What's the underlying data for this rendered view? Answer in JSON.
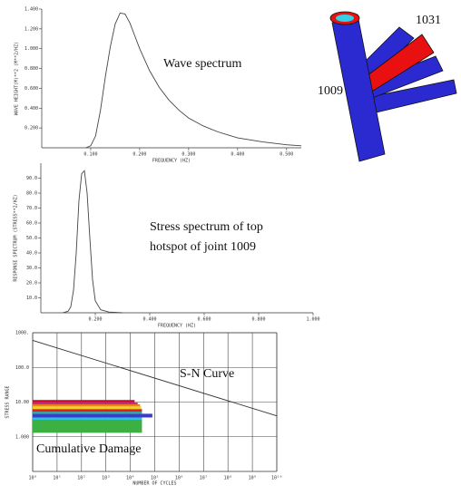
{
  "chart_data": [
    {
      "type": "line",
      "annotation": "Wave spectrum",
      "y_label": "WAVE HEIGHT(M)**2 (M**2/HZ)",
      "x_label": "FREQUENCY (HZ)",
      "color": "#444444",
      "x": [
        0.09,
        0.1,
        0.11,
        0.12,
        0.13,
        0.14,
        0.15,
        0.16,
        0.17,
        0.18,
        0.19,
        0.2,
        0.22,
        0.24,
        0.26,
        0.28,
        0.3,
        0.33,
        0.36,
        0.4,
        0.45,
        0.5,
        0.53
      ],
      "values": [
        0.0,
        0.02,
        0.12,
        0.38,
        0.72,
        1.02,
        1.25,
        1.36,
        1.35,
        1.26,
        1.13,
        1.0,
        0.78,
        0.61,
        0.48,
        0.38,
        0.3,
        0.22,
        0.16,
        0.1,
        0.06,
        0.03,
        0.02
      ],
      "xlim": [
        0,
        0.53
      ],
      "ylim": [
        0,
        1.4
      ],
      "xticks": [
        {
          "value": 0.1,
          "label": "0.100"
        },
        {
          "value": 0.2,
          "label": "0.200"
        },
        {
          "value": 0.3,
          "label": "0.300"
        },
        {
          "value": 0.4,
          "label": "0.400"
        },
        {
          "value": 0.5,
          "label": "0.500"
        }
      ],
      "yticks": [
        {
          "value": 0.2,
          "label": "0.200"
        },
        {
          "value": 0.4,
          "label": "0.400"
        },
        {
          "value": 0.6,
          "label": "0.600"
        },
        {
          "value": 0.8,
          "label": "0.800"
        },
        {
          "value": 1.0,
          "label": "1.000"
        },
        {
          "value": 1.2,
          "label": "1.200"
        },
        {
          "value": 1.4,
          "label": "1.400"
        }
      ]
    },
    {
      "type": "line",
      "annotation": [
        "Stress  spectrum  of  top",
        "hotspot of joint 1009"
      ],
      "y_label": "RESPONSE SPECTRUM (STRESS**2/HZ)",
      "x_label": "FREQUENCY (HZ)",
      "color": "#444444",
      "x": [
        0.08,
        0.1,
        0.11,
        0.12,
        0.13,
        0.14,
        0.15,
        0.16,
        0.17,
        0.18,
        0.19,
        0.2,
        0.22,
        0.25,
        0.3
      ],
      "values": [
        0,
        1,
        4,
        15,
        40,
        75,
        93,
        95,
        80,
        50,
        22,
        8,
        2,
        0.5,
        0
      ],
      "xlim": [
        0,
        1
      ],
      "ylim": [
        0,
        100
      ],
      "xticks": [
        {
          "value": 0.2,
          "label": "0.200"
        },
        {
          "value": 0.4,
          "label": "0.400"
        },
        {
          "value": 0.6,
          "label": "0.600"
        },
        {
          "value": 0.8,
          "label": "0.800"
        },
        {
          "value": 1.0,
          "label": "1.000"
        }
      ],
      "yticks": [
        {
          "value": 10,
          "label": "10.0"
        },
        {
          "value": 20,
          "label": "20.0"
        },
        {
          "value": 30,
          "label": "30.0"
        },
        {
          "value": 40,
          "label": "40.0"
        },
        {
          "value": 50,
          "label": "50.0"
        },
        {
          "value": 60,
          "label": "60.0"
        },
        {
          "value": 70,
          "label": "70.0"
        },
        {
          "value": 80,
          "label": "80.0"
        },
        {
          "value": 90,
          "label": "90.0"
        }
      ]
    },
    {
      "type": "sn",
      "annotation": "Cumulative Damage",
      "y_label": "STRESS RANGE",
      "x_label": "NUMBER OF CYCLES",
      "log_x": true,
      "log_y": true,
      "grid": true,
      "xlim": [
        1,
        10000000000
      ],
      "ylim": [
        0.1,
        1000
      ],
      "xticks": [
        {
          "value": 1,
          "label": "10⁰"
        },
        {
          "value": 10,
          "label": "10¹"
        },
        {
          "value": 100,
          "label": "10²"
        },
        {
          "value": 1000,
          "label": "10³"
        },
        {
          "value": 10000,
          "label": "10⁴"
        },
        {
          "value": 100000,
          "label": "10⁵"
        },
        {
          "value": 1000000,
          "label": "10⁶"
        },
        {
          "value": 10000000,
          "label": "10⁷"
        },
        {
          "value": 100000000,
          "label": "10⁸"
        },
        {
          "value": 1000000000,
          "label": "10⁹"
        },
        {
          "value": 10000000000,
          "label": "10¹⁰"
        }
      ],
      "yticks": [
        {
          "value": 1,
          "label": "1.000"
        },
        {
          "value": 10,
          "label": "10.00"
        },
        {
          "value": 100,
          "label": "100.0"
        },
        {
          "value": 1000,
          "label": "1000."
        }
      ],
      "series": [
        {
          "name": "S-N Curve",
          "color": "#333333",
          "x": [
            1,
            10000000000
          ],
          "values": [
            600,
            4
          ]
        }
      ],
      "blocks": {
        "edges": [
          1.3,
          3.1,
          3.6,
          4.6,
          5.3,
          6.3,
          7.5,
          8.6,
          9.6,
          11.5
        ],
        "cycles": [
          30000,
          30000,
          80000,
          30000,
          30000,
          28000,
          25000,
          20000,
          15000
        ],
        "colors": [
          "#3cb043",
          "#25c4d8",
          "#3b3bd1",
          "#2ea89c",
          "#e02020",
          "#f0d020",
          "#f08020",
          "#c02090",
          "#d01030"
        ]
      }
    }
  ],
  "joint": {
    "labels": [
      "1031",
      "1009"
    ]
  }
}
